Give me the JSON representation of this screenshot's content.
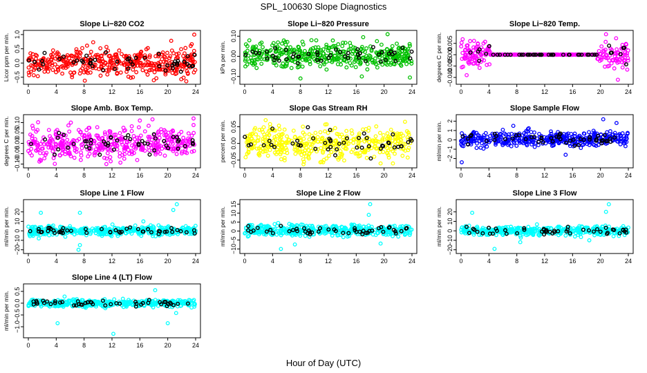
{
  "suptitle": "SPL_100630  Slope Diagnostics",
  "xlabel": "Hour of Day (UTC)",
  "chart_data": [
    {
      "type": "scatter",
      "title": "Slope Li−820 CO2",
      "ylabel": "Licor ppm per min.",
      "color": "#ff0000",
      "xlim": [
        0,
        24
      ],
      "ylim": [
        -0.65,
        1.05
      ],
      "xticks": [
        0,
        4,
        8,
        12,
        16,
        20,
        24
      ],
      "yticks": [
        -0.5,
        0.0,
        0.5,
        1.0
      ],
      "ytick_labels": [
        "−0.5",
        "0.0",
        "0.5",
        "1.0"
      ],
      "center": 0.02,
      "spread": 0.2,
      "drift": 0.12,
      "outliers": [
        [
          23.8,
          1.0
        ],
        [
          20.5,
          0.78
        ],
        [
          9.3,
          0.73
        ],
        [
          8.1,
          -0.62
        ]
      ]
    },
    {
      "type": "scatter",
      "title": "Slope Li−820 Pressure",
      "ylabel": "kPa per min.",
      "color": "#00c000",
      "xlim": [
        0,
        24
      ],
      "ylim": [
        -0.125,
        0.115
      ],
      "xticks": [
        0,
        4,
        8,
        12,
        16,
        20,
        24
      ],
      "yticks": [
        -0.1,
        0.0,
        0.1
      ],
      "ytick_labels": [
        "−0.10",
        "0.00",
        "0.10"
      ],
      "center": 0.005,
      "spread": 0.03,
      "drift": 0,
      "outliers": [
        [
          8,
          -0.11
        ],
        [
          16.8,
          -0.1
        ],
        [
          23.7,
          -0.105
        ],
        [
          20.5,
          0.11
        ],
        [
          17,
          0.095
        ],
        [
          0.1,
          -0.05
        ]
      ]
    },
    {
      "type": "scatter",
      "title": "Slope Li−820 Temp.",
      "ylabel": "degrees C per min.",
      "color": "#ff00ff",
      "xlim": [
        0,
        24
      ],
      "ylim": [
        -0.0118,
        0.0095
      ],
      "xticks": [
        0,
        4,
        8,
        12,
        16,
        20,
        24
      ],
      "yticks": [
        -0.01,
        -0.005,
        0.0,
        0.005
      ],
      "ytick_labels": [
        "−0.010",
        "−0.005",
        "0.000",
        "0.005"
      ],
      "center": 0.0,
      "spread": 0.003,
      "drift": 0,
      "flat": [
        4.2,
        19.5
      ],
      "outliers": [
        [
          20.8,
          0.009
        ],
        [
          0.8,
          -0.009
        ],
        [
          22.5,
          -0.011
        ],
        [
          1.3,
          0.006
        ]
      ]
    },
    {
      "type": "scatter",
      "title": "Slope Amb. Box Temp.",
      "ylabel": "degrees C per min.",
      "color": "#ff00ff",
      "xlim": [
        0,
        24
      ],
      "ylim": [
        -0.105,
        0.125
      ],
      "xticks": [
        0,
        4,
        8,
        12,
        16,
        20,
        24
      ],
      "yticks": [
        -0.1,
        -0.05,
        0.0,
        0.05,
        0.1
      ],
      "ytick_labels": [
        "−0.10",
        "−0.05",
        "0.00",
        "0.05",
        "0.10"
      ],
      "center": 0.0,
      "spread": 0.035,
      "drift": 0.035,
      "outliers": [
        [
          11.2,
          -0.1
        ],
        [
          16,
          0.11
        ],
        [
          6.1,
          0.1
        ],
        [
          23.7,
          0.12
        ]
      ]
    },
    {
      "type": "scatter",
      "title": "Slope Gas Stream RH",
      "ylabel": "percent per min.",
      "color": "#ffff00",
      "xlim": [
        0,
        24
      ],
      "ylim": [
        -0.065,
        0.078
      ],
      "xticks": [
        0,
        4,
        8,
        12,
        16,
        20,
        24
      ],
      "yticks": [
        -0.05,
        0.0,
        0.05
      ],
      "ytick_labels": [
        "−0.05",
        "0.00",
        "0.05"
      ],
      "center": 0.0,
      "spread": 0.025,
      "drift": 0,
      "outliers": [
        [
          3,
          0.07
        ],
        [
          19.5,
          -0.06
        ],
        [
          8.5,
          -0.055
        ],
        [
          23,
          0.065
        ]
      ]
    },
    {
      "type": "scatter",
      "title": "Slope Sample Flow",
      "ylabel": "ml/min per min.",
      "color": "#0000ff",
      "xlim": [
        0,
        24
      ],
      "ylim": [
        -2.7,
        2.4
      ],
      "xticks": [
        0,
        4,
        8,
        12,
        16,
        20,
        24
      ],
      "yticks": [
        -2,
        -1,
        0,
        1,
        2
      ],
      "ytick_labels": [
        "−2",
        "−1",
        "0",
        "1",
        "2"
      ],
      "center": 0.1,
      "spread": 0.4,
      "drift": 0,
      "outliers": [
        [
          0.1,
          -2.4
        ],
        [
          20.4,
          2.2
        ],
        [
          7.5,
          1.5
        ],
        [
          15,
          -1.6
        ],
        [
          22.3,
          1.8
        ]
      ]
    },
    {
      "type": "scatter",
      "title": "Slope Line 1 Flow",
      "ylabel": "ml/min per min.",
      "color": "#00ffff",
      "xlim": [
        0,
        24
      ],
      "ylim": [
        -21,
        30
      ],
      "xticks": [
        0,
        4,
        8,
        12,
        16,
        20,
        24
      ],
      "yticks": [
        -20,
        -10,
        0,
        10,
        20
      ],
      "ytick_labels": [
        "−20",
        "−10",
        "0",
        "10",
        "20"
      ],
      "center": 0.0,
      "spread": 2.5,
      "drift": 0,
      "outliers": [
        [
          21.3,
          28
        ],
        [
          20.8,
          22
        ],
        [
          1.8,
          19
        ],
        [
          7.4,
          19
        ],
        [
          7.4,
          -15
        ],
        [
          7.2,
          -20
        ],
        [
          16.5,
          10
        ],
        [
          1.5,
          -8
        ]
      ]
    },
    {
      "type": "scatter",
      "title": "Slope Line 2 Flow",
      "ylabel": "ml/min per min.",
      "color": "#00ffff",
      "xlim": [
        0,
        24
      ],
      "ylim": [
        -11,
        16
      ],
      "xticks": [
        0,
        4,
        8,
        12,
        16,
        20,
        24
      ],
      "yticks": [
        -10,
        -5,
        0,
        5,
        10,
        15
      ],
      "ytick_labels": [
        "−10",
        "−5",
        "0",
        "5",
        "10",
        "15"
      ],
      "center": 0.5,
      "spread": 1.5,
      "drift": 0,
      "outliers": [
        [
          18,
          15
        ],
        [
          17.8,
          9
        ],
        [
          5.2,
          -10
        ],
        [
          7.2,
          -7.5
        ],
        [
          19.5,
          -7
        ],
        [
          4.8,
          4.5
        ]
      ]
    },
    {
      "type": "scatter",
      "title": "Slope Line 3 Flow",
      "ylabel": "ml/min per min.",
      "color": "#00ffff",
      "xlim": [
        0,
        24
      ],
      "ylim": [
        -21,
        30
      ],
      "xticks": [
        0,
        4,
        8,
        12,
        16,
        20,
        24
      ],
      "yticks": [
        -20,
        -10,
        0,
        10,
        20
      ],
      "ytick_labels": [
        "−20",
        "−10",
        "0",
        "10",
        "20"
      ],
      "center": 0.0,
      "spread": 2.5,
      "drift": 0,
      "outliers": [
        [
          21.2,
          28
        ],
        [
          20.8,
          20
        ],
        [
          1.6,
          19
        ],
        [
          4.8,
          -19
        ],
        [
          18.4,
          -10
        ],
        [
          8.5,
          -12
        ]
      ]
    },
    {
      "type": "scatter",
      "title": "Slope Line 4 (LT) Flow",
      "ylabel": "ml/min per min.",
      "color": "#00ffff",
      "xlim": [
        0,
        24
      ],
      "ylim": [
        -1.35,
        0.7
      ],
      "xticks": [
        0,
        4,
        8,
        12,
        16,
        20,
        24
      ],
      "yticks": [
        -1.0,
        -0.5,
        0.0,
        0.5
      ],
      "ytick_labels": [
        "−1.0",
        "−0.5",
        "0.0",
        "0.5"
      ],
      "center": 0.0,
      "spread": 0.08,
      "drift": 0,
      "outliers": [
        [
          12.2,
          -1.3
        ],
        [
          4.2,
          -0.85
        ],
        [
          20,
          -0.85
        ],
        [
          18.2,
          0.55
        ],
        [
          21.2,
          -0.42
        ],
        [
          5.2,
          0.28
        ]
      ]
    }
  ]
}
